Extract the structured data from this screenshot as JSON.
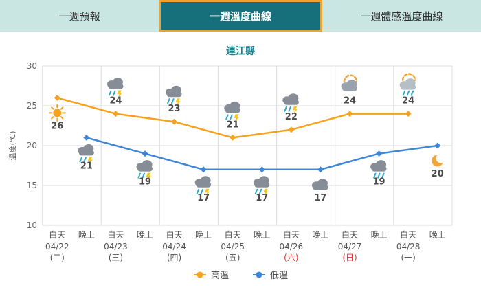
{
  "tabs": [
    {
      "label": "一週預報",
      "active": false
    },
    {
      "label": "一週溫度曲線",
      "active": true
    },
    {
      "label": "一週體感溫度曲線",
      "active": false
    }
  ],
  "title": "連江縣",
  "theme": {
    "tab_bar_bg": "#c9e6e2",
    "active_tab_bg": "#15707c",
    "active_tab_border": "#f0a22e",
    "title_color": "#16808d",
    "weekend_color": "#e03232"
  },
  "chart_data": {
    "type": "line",
    "title": "連江縣",
    "ylabel": "溫度(℃)",
    "ylim": [
      10,
      30
    ],
    "yticks": [
      10,
      15,
      20,
      25,
      30
    ],
    "grid": true,
    "legend_position": "bottom",
    "period_labels": [
      "白天",
      "晚上"
    ],
    "weekend_color": "#e03232",
    "days": [
      {
        "date": "04/22",
        "weekday": "(二)",
        "weekend": false
      },
      {
        "date": "04/23",
        "weekday": "(三)",
        "weekend": false
      },
      {
        "date": "04/24",
        "weekday": "(四)",
        "weekend": false
      },
      {
        "date": "04/25",
        "weekday": "(五)",
        "weekend": false
      },
      {
        "date": "04/26",
        "weekday": "(六)",
        "weekend": true
      },
      {
        "date": "04/27",
        "weekday": "(日)",
        "weekend": true
      },
      {
        "date": "04/28",
        "weekday": "(一)",
        "weekend": false
      }
    ],
    "series": [
      {
        "name": "高溫",
        "color": "#f6a21c",
        "points": [
          {
            "slot": 0,
            "value": 26,
            "icon": "sun",
            "pos": "below"
          },
          {
            "slot": 2,
            "value": 24,
            "icon": "thunder-rain"
          },
          {
            "slot": 4,
            "value": 23,
            "icon": "thunder-rain"
          },
          {
            "slot": 6,
            "value": 21,
            "icon": "thunder-rain"
          },
          {
            "slot": 8,
            "value": 22,
            "icon": "thunder-rain"
          },
          {
            "slot": 10,
            "value": 24,
            "icon": "sun-cloud"
          },
          {
            "slot": 12,
            "value": 24,
            "icon": "sun-cloud-rain"
          }
        ]
      },
      {
        "name": "低溫",
        "color": "#3f87d6",
        "points": [
          {
            "slot": 1,
            "value": 21,
            "icon": "thunder-rain"
          },
          {
            "slot": 3,
            "value": 19,
            "icon": "thunder-rain"
          },
          {
            "slot": 5,
            "value": 17,
            "icon": "thunder-rain"
          },
          {
            "slot": 7,
            "value": 17,
            "icon": "thunder-rain"
          },
          {
            "slot": 9,
            "value": 17,
            "icon": "cloud"
          },
          {
            "slot": 11,
            "value": 19,
            "icon": "rain"
          },
          {
            "slot": 13,
            "value": 20,
            "icon": "moon"
          }
        ]
      }
    ],
    "legend": [
      {
        "label": "高溫",
        "color": "#f6a21c"
      },
      {
        "label": "低溫",
        "color": "#3f87d6"
      }
    ]
  }
}
